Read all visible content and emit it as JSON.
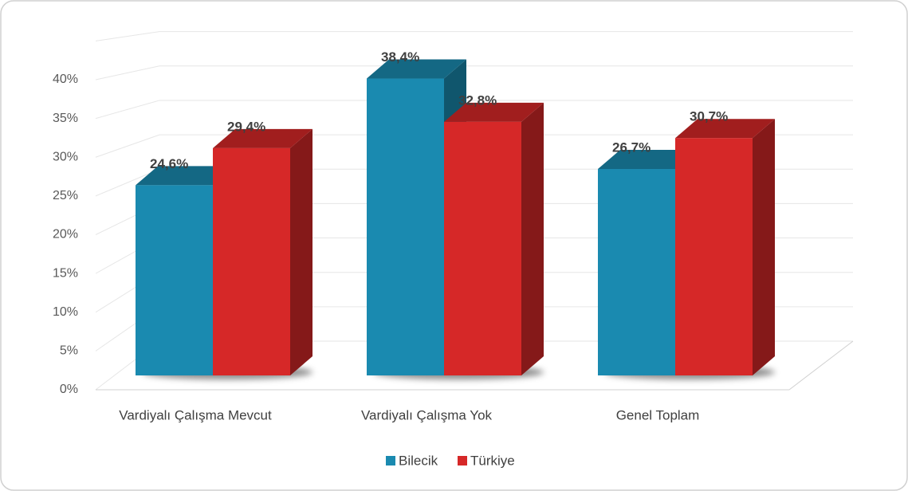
{
  "chart_data": {
    "type": "bar3d",
    "categories": [
      "Vardiyalı Çalışma Mevcut",
      "Vardiyalı Çalışma Yok",
      "Genel Toplam"
    ],
    "series": [
      {
        "name": "Bilecik",
        "color": "#1a8ab0",
        "values": [
          24.6,
          38.4,
          26.7
        ],
        "value_labels": [
          "24,6%",
          "38,4%",
          "26,7%"
        ]
      },
      {
        "name": "Türkiye",
        "color": "#d62828",
        "values": [
          29.4,
          32.8,
          30.7
        ],
        "value_labels": [
          "29,4%",
          "32,8%",
          "30,7%"
        ]
      }
    ],
    "ylim": [
      0,
      45
    ],
    "yticks": [
      {
        "value": 0,
        "label": "0%"
      },
      {
        "value": 5,
        "label": "5%"
      },
      {
        "value": 10,
        "label": "10%"
      },
      {
        "value": 15,
        "label": "15%"
      },
      {
        "value": 20,
        "label": "20%"
      },
      {
        "value": 25,
        "label": "25%"
      },
      {
        "value": 30,
        "label": "30%"
      },
      {
        "value": 35,
        "label": "35%"
      },
      {
        "value": 40,
        "label": "40%"
      }
    ],
    "grid": true,
    "legend": "bottom"
  }
}
